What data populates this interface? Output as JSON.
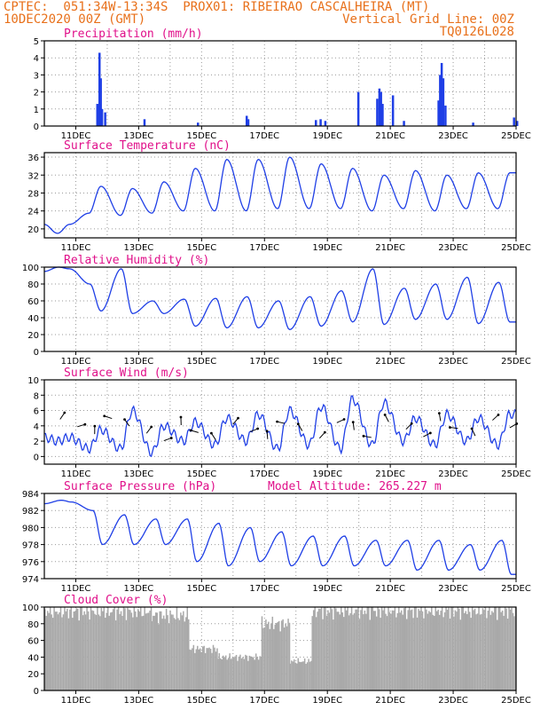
{
  "header": {
    "line1": "CPTEC:  051:34W-13:34S  PROX01: RIBEIRAO CASCALHEIRA (MT)",
    "date": "10DEC2020 00Z (GMT)",
    "grid_note": "Vertical Grid Line: 00Z",
    "code": "TQ0126L028"
  },
  "chart_data": [
    {
      "type": "bar",
      "title": "Precipitation (mm/h)",
      "ylim": [
        0,
        5
      ],
      "yticks": [
        0,
        1,
        2,
        3,
        4,
        5
      ],
      "x_tick_labels": [
        "11DEC",
        "13DEC",
        "15DEC",
        "17DEC",
        "19DEC",
        "21DEC",
        "23DEC",
        "25DEC"
      ],
      "bars": [
        {
          "day": 11.65,
          "value": 1.3
        },
        {
          "day": 11.72,
          "value": 4.3
        },
        {
          "day": 11.76,
          "value": 2.8
        },
        {
          "day": 11.8,
          "value": 1.0
        },
        {
          "day": 11.9,
          "value": 0.8
        },
        {
          "day": 13.15,
          "value": 0.4
        },
        {
          "day": 14.85,
          "value": 0.2
        },
        {
          "day": 16.4,
          "value": 0.6
        },
        {
          "day": 16.45,
          "value": 0.4
        },
        {
          "day": 18.6,
          "value": 0.35
        },
        {
          "day": 18.75,
          "value": 0.4
        },
        {
          "day": 18.9,
          "value": 0.3
        },
        {
          "day": 19.95,
          "value": 2.0
        },
        {
          "day": 20.55,
          "value": 1.6
        },
        {
          "day": 20.62,
          "value": 2.2
        },
        {
          "day": 20.67,
          "value": 2.0
        },
        {
          "day": 20.72,
          "value": 1.3
        },
        {
          "day": 21.05,
          "value": 1.8
        },
        {
          "day": 21.4,
          "value": 0.3
        },
        {
          "day": 22.5,
          "value": 1.5
        },
        {
          "day": 22.55,
          "value": 3.0
        },
        {
          "day": 22.6,
          "value": 3.7
        },
        {
          "day": 22.65,
          "value": 2.8
        },
        {
          "day": 22.72,
          "value": 1.2
        },
        {
          "day": 23.6,
          "value": 0.2
        },
        {
          "day": 24.9,
          "value": 0.5
        },
        {
          "day": 25.0,
          "value": 0.3
        }
      ]
    },
    {
      "type": "line",
      "title": "Surface Temperature (nC)",
      "ylim": [
        18,
        37
      ],
      "yticks": [
        20,
        24,
        28,
        32,
        36
      ],
      "x_tick_labels": [
        "11DEC",
        "13DEC",
        "15DEC",
        "17DEC",
        "19DEC",
        "21DEC",
        "23DEC",
        "25DEC"
      ],
      "daily_min": [
        19,
        23.5,
        23,
        23.5,
        24,
        24,
        24,
        24.5,
        24.5,
        24.5,
        24,
        24.5,
        24,
        24.5,
        24.5,
        24
      ],
      "daily_max": [
        21,
        29.5,
        29,
        30.5,
        33.5,
        35.5,
        35.5,
        36,
        34.5,
        33.5,
        32,
        33,
        32,
        32.5,
        32.5,
        33
      ]
    },
    {
      "type": "line",
      "title": "Relative Humidity (%)",
      "ylim": [
        0,
        100
      ],
      "yticks": [
        0,
        20,
        40,
        60,
        80,
        100
      ],
      "x_tick_labels": [
        "11DEC",
        "13DEC",
        "15DEC",
        "17DEC",
        "19DEC",
        "21DEC",
        "23DEC",
        "25DEC"
      ],
      "daily_max": [
        100,
        80,
        98,
        60,
        62,
        63,
        65,
        60,
        65,
        72,
        98,
        75,
        80,
        88,
        82,
        55
      ],
      "daily_min": [
        98,
        48,
        45,
        45,
        30,
        28,
        28,
        26,
        30,
        35,
        32,
        38,
        38,
        33,
        35,
        35
      ]
    },
    {
      "type": "line",
      "title": "Surface Wind (m/s)",
      "ylim": [
        -1,
        10
      ],
      "yticks": [
        0,
        2,
        4,
        6,
        8,
        10
      ],
      "x_tick_labels": [
        "11DEC",
        "13DEC",
        "15DEC",
        "17DEC",
        "19DEC",
        "21DEC",
        "23DEC",
        "25DEC"
      ],
      "daily_min": [
        2,
        1,
        1,
        0.5,
        2,
        1.5,
        2,
        1,
        1.5,
        1,
        1.5,
        2,
        1.5,
        2,
        1.5,
        2
      ],
      "daily_max": [
        2.5,
        3.5,
        6,
        4,
        4.5,
        5,
        5.5,
        6,
        6.5,
        7.5,
        7,
        5,
        5.5,
        5,
        5.5,
        6
      ]
    },
    {
      "type": "line",
      "title": "Surface Pressure (hPa)",
      "annotation": "Model Altitude: 265.227 m",
      "ylim": [
        974,
        984
      ],
      "yticks": [
        974,
        976,
        978,
        980,
        982,
        984
      ],
      "x_tick_labels": [
        "11DEC",
        "13DEC",
        "15DEC",
        "17DEC",
        "19DEC",
        "21DEC",
        "23DEC",
        "25DEC"
      ],
      "daily_max": [
        983.2,
        982,
        981.5,
        981,
        981,
        980.5,
        980,
        979.5,
        979,
        979,
        978.5,
        978.5,
        978.5,
        978,
        978.5,
        977.5
      ],
      "daily_min": [
        983,
        978,
        978,
        978,
        976,
        975.5,
        976,
        975.5,
        975.5,
        975.5,
        975.5,
        975,
        975,
        975,
        974.5,
        975
      ]
    },
    {
      "type": "bar",
      "title": "Cloud Cover (%)",
      "ylim": [
        0,
        100
      ],
      "yticks": [
        0,
        20,
        40,
        60,
        80,
        100
      ],
      "x_tick_labels": [
        "11DEC",
        "13DEC",
        "15DEC",
        "17DEC",
        "19DEC",
        "21DEC",
        "23DEC",
        "25DEC"
      ],
      "segments": [
        {
          "start": 10,
          "end": 13.4,
          "value": 95
        },
        {
          "start": 13.4,
          "end": 14.6,
          "value": 90
        },
        {
          "start": 14.6,
          "end": 15.5,
          "value": 50
        },
        {
          "start": 15.5,
          "end": 16.9,
          "value": 40
        },
        {
          "start": 16.9,
          "end": 17.8,
          "value": 80
        },
        {
          "start": 17.8,
          "end": 18.5,
          "value": 35
        },
        {
          "start": 18.5,
          "end": 25,
          "value": 96
        }
      ]
    }
  ],
  "colors": {
    "line": "#1f3fe6",
    "bar_precip": "#1f3fe6",
    "bar_cloud": "#a9a9a9",
    "title": "#e0108a",
    "header": "#e8701a",
    "grid": "#9a9a9a"
  }
}
